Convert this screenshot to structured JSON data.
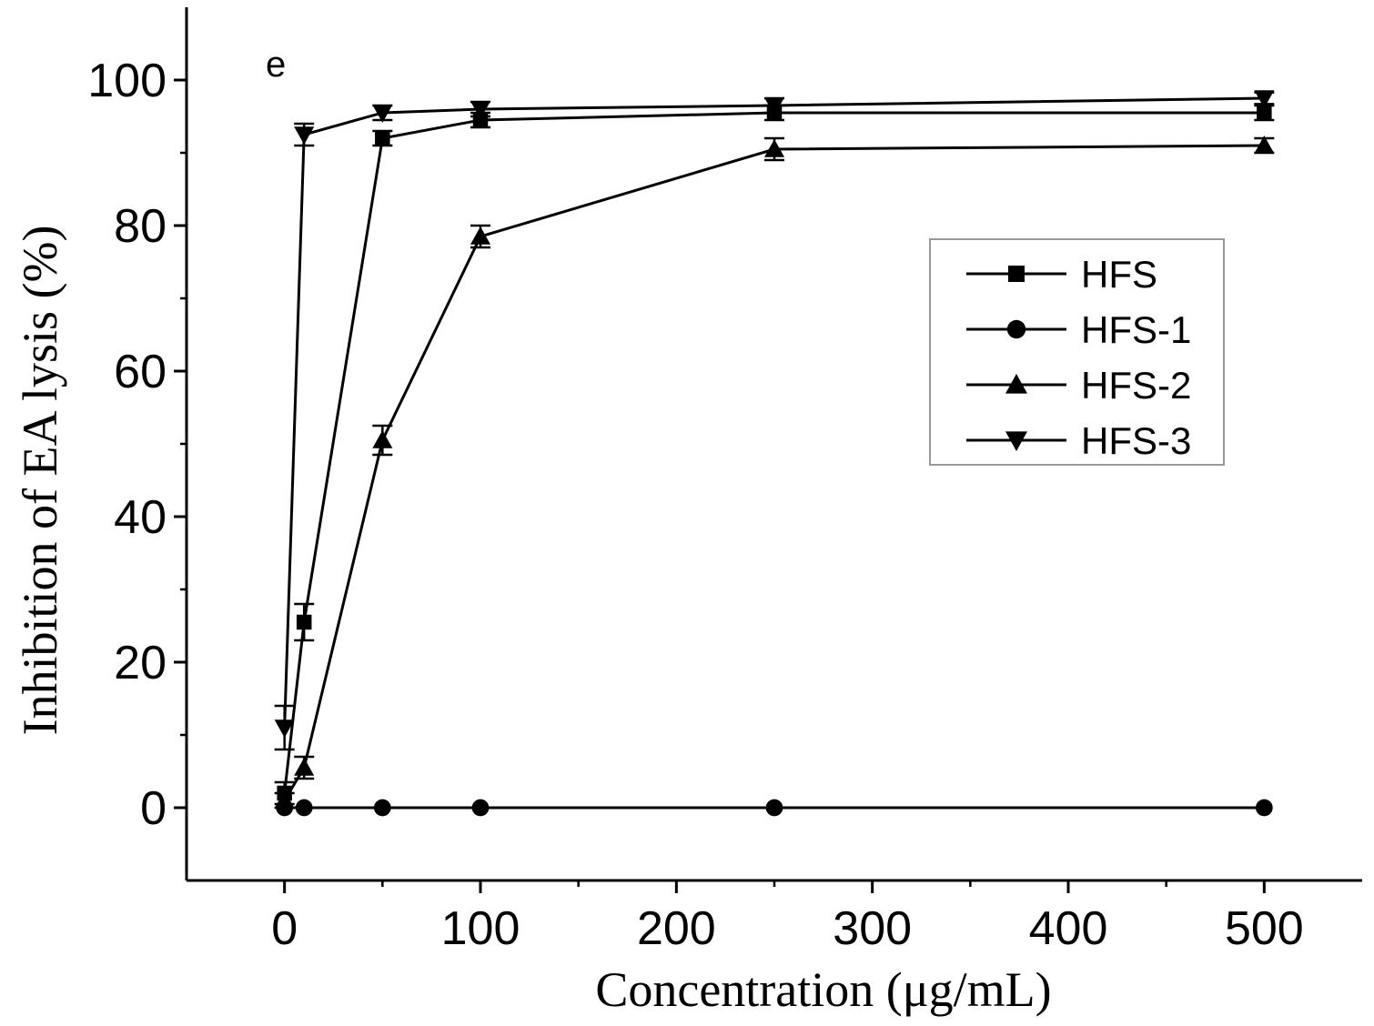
{
  "chart_data": {
    "type": "line",
    "panel_label": "e",
    "xlabel": "Concentration (μg/mL)",
    "ylabel": "Inhibition of EA lysis (%)",
    "xlim": [
      -50,
      550
    ],
    "ylim": [
      -10,
      110
    ],
    "xticks": [
      0,
      100,
      200,
      300,
      400,
      500
    ],
    "yticks": [
      0,
      20,
      40,
      60,
      80,
      100
    ],
    "grid": false,
    "legend_position": "right-middle",
    "series": [
      {
        "name": "HFS",
        "marker": "square",
        "x": [
          0,
          10,
          50,
          100,
          250,
          500
        ],
        "y": [
          2,
          25.5,
          92,
          94.5,
          95.5,
          95.5
        ],
        "err": [
          1.5,
          2.5,
          1,
          1,
          1,
          1
        ]
      },
      {
        "name": "HFS-1",
        "marker": "circle",
        "x": [
          0,
          10,
          50,
          100,
          250,
          500
        ],
        "y": [
          0,
          0,
          0,
          0,
          0,
          0
        ],
        "err": [
          0,
          0,
          0,
          0,
          0,
          0
        ]
      },
      {
        "name": "HFS-2",
        "marker": "triangle-up",
        "x": [
          0,
          10,
          50,
          100,
          250,
          500
        ],
        "y": [
          1,
          5.5,
          50.5,
          78.5,
          90.5,
          91
        ],
        "err": [
          1,
          1.5,
          2,
          1.5,
          1.5,
          1
        ]
      },
      {
        "name": "HFS-3",
        "marker": "triangle-down",
        "x": [
          0,
          10,
          50,
          100,
          250,
          500
        ],
        "y": [
          11,
          92.5,
          95.5,
          96,
          96.5,
          97.5
        ],
        "err": [
          3,
          1.5,
          1,
          1,
          1,
          0.8
        ]
      }
    ]
  }
}
